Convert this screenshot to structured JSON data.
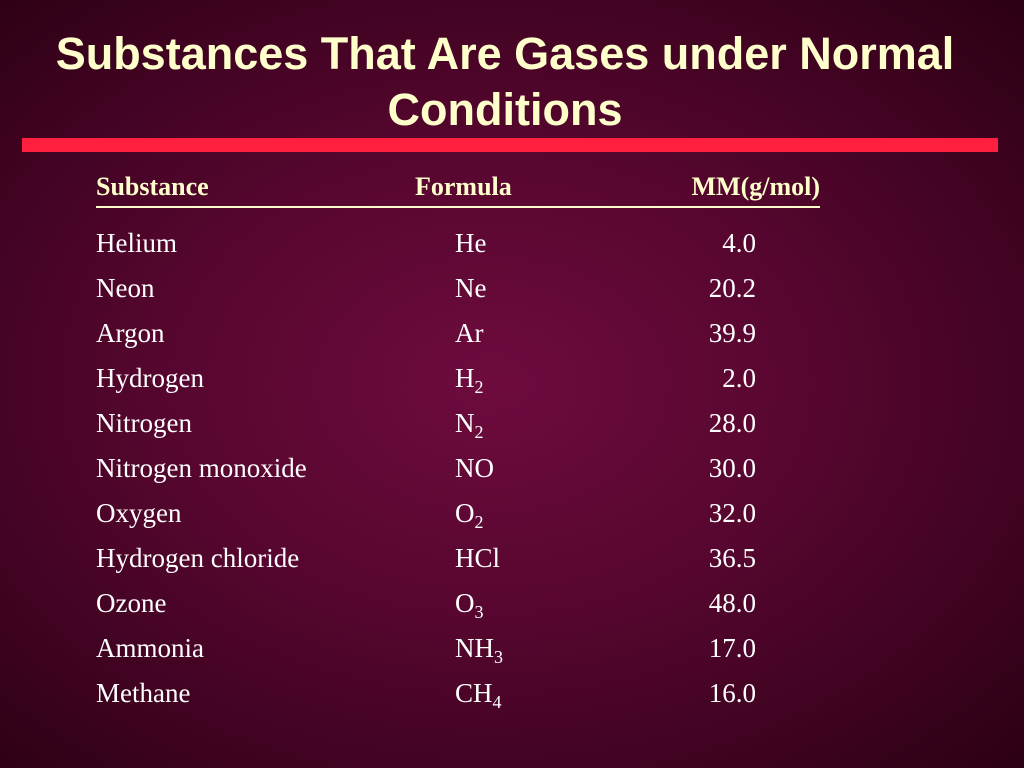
{
  "header": {
    "title": "Substances That Are Gases under Normal Conditions"
  },
  "table": {
    "columns": [
      "Substance",
      "Formula",
      "MM(g/mol)"
    ],
    "rows": [
      [
        "Helium",
        "He",
        "4.0"
      ],
      [
        "Neon",
        "Ne",
        "20.2"
      ],
      [
        "Argon",
        "Ar",
        "39.9"
      ],
      [
        "Hydrogen",
        "H2",
        "2.0"
      ],
      [
        "Nitrogen",
        "N2",
        "28.0"
      ],
      [
        "Nitrogen monoxide",
        "NO",
        "30.0"
      ],
      [
        "Oxygen",
        "O2",
        "32.0"
      ],
      [
        "Hydrogen chloride",
        "HCl",
        "36.5"
      ],
      [
        "Ozone",
        "O3",
        "48.0"
      ],
      [
        "Ammonia",
        "NH3",
        "17.0"
      ],
      [
        "Methane",
        "CH4",
        "16.0"
      ]
    ]
  }
}
